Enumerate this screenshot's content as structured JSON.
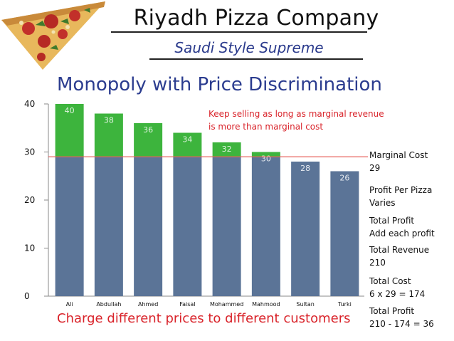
{
  "header": {
    "title": "Riyadh Pizza Company",
    "subtitle": "Saudi Style Supreme"
  },
  "heading": "Monopoly with Price Discrimination",
  "annotation": {
    "line1": "Keep selling as long as marginal revenue",
    "line2": "is more than marginal cost"
  },
  "side_notes": [
    {
      "label": "Marginal Cost",
      "value": "29"
    },
    {
      "label": "Profit Per Pizza",
      "value": "Varies"
    },
    {
      "label": "Total Profit",
      "value": "Add each profit"
    },
    {
      "label": "Total Revenue",
      "value": "210"
    },
    {
      "label": "Total Cost",
      "value": "6 x 29 = 174"
    },
    {
      "label": "Total Profit",
      "value": "210 - 174 = 36"
    }
  ],
  "footer": "Charge different prices to different customers",
  "chart_data": {
    "type": "bar",
    "stacked": true,
    "categories": [
      "Ali",
      "Abdullah",
      "Ahmed",
      "Faisal",
      "Mohammed",
      "Mahmood",
      "Sultan",
      "Turki"
    ],
    "values": [
      40,
      38,
      36,
      34,
      32,
      30,
      28,
      26
    ],
    "data_labels": [
      "40",
      "38",
      "36",
      "34",
      "32",
      "30",
      "28",
      "26"
    ],
    "marginal_cost": 29,
    "ylim": [
      0,
      40
    ],
    "yticks": [
      0,
      10,
      20,
      30,
      40
    ],
    "grid": false,
    "colors": {
      "base": "#5b7497",
      "profit": "#3db43d",
      "mc_line": "#e8615c"
    }
  }
}
